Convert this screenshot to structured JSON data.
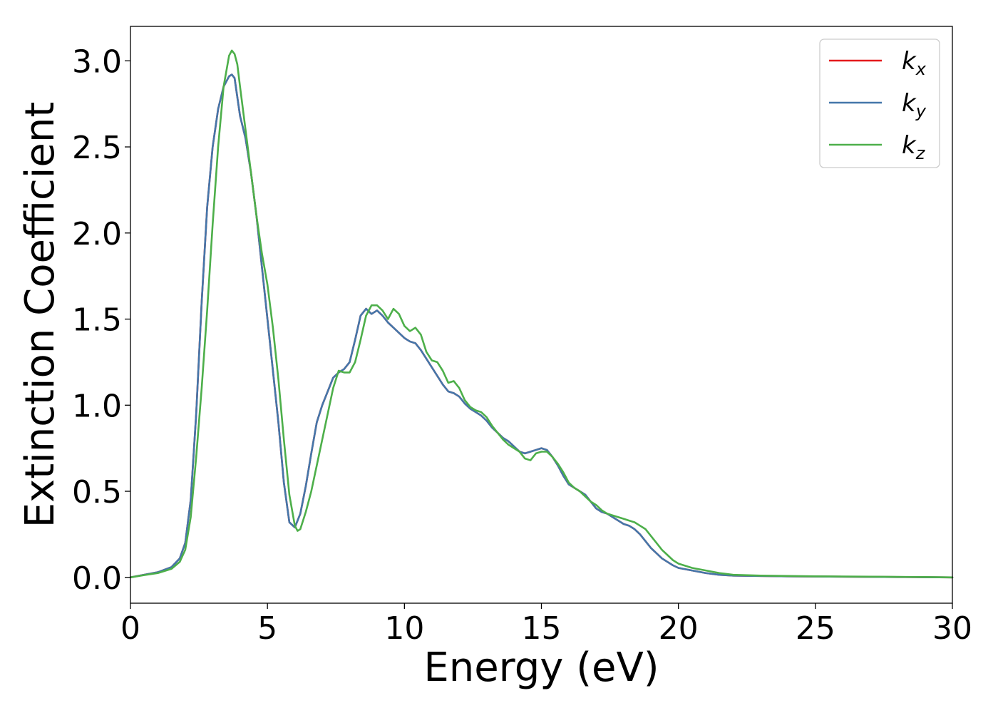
{
  "chart_data": {
    "type": "line",
    "title": "",
    "xlabel": "Energy (eV)",
    "ylabel": "Extinction Coefficient",
    "xlim": [
      0,
      30
    ],
    "ylim": [
      -0.15,
      3.2
    ],
    "xticks": [
      0,
      5,
      10,
      15,
      20,
      25,
      30
    ],
    "xtick_labels": [
      "0",
      "5",
      "10",
      "15",
      "20",
      "25",
      "30"
    ],
    "yticks": [
      0.0,
      0.5,
      1.0,
      1.5,
      2.0,
      2.5,
      3.0
    ],
    "ytick_labels": [
      "0.0",
      "0.5",
      "1.0",
      "1.5",
      "2.0",
      "2.5",
      "3.0"
    ],
    "grid": false,
    "legend_position": "top-right",
    "series": [
      {
        "name": "k",
        "subscript": "x",
        "color": "#e41a1c",
        "x": [
          0,
          0.5,
          1.0,
          1.5,
          1.8,
          2.0,
          2.2,
          2.4,
          2.6,
          2.8,
          3.0,
          3.2,
          3.4,
          3.6,
          3.7,
          3.8,
          4.0,
          4.2,
          4.4,
          4.6,
          4.8,
          5.0,
          5.2,
          5.4,
          5.6,
          5.8,
          6.0,
          6.2,
          6.4,
          6.6,
          6.8,
          7.0,
          7.2,
          7.4,
          7.6,
          7.8,
          8.0,
          8.2,
          8.4,
          8.6,
          8.8,
          9.0,
          9.2,
          9.4,
          9.6,
          9.8,
          10.0,
          10.2,
          10.4,
          10.6,
          10.8,
          11.0,
          11.2,
          11.4,
          11.6,
          11.8,
          12.0,
          12.2,
          12.4,
          12.6,
          12.8,
          13.0,
          13.2,
          13.4,
          13.6,
          13.8,
          14.0,
          14.2,
          14.4,
          14.6,
          14.8,
          15.0,
          15.2,
          15.4,
          15.6,
          15.8,
          16.0,
          16.2,
          16.4,
          16.6,
          16.8,
          17.0,
          17.2,
          17.4,
          17.6,
          17.8,
          18.0,
          18.2,
          18.4,
          18.6,
          18.8,
          19.0,
          19.2,
          19.4,
          19.6,
          19.8,
          20.0,
          20.5,
          21.0,
          21.5,
          22.0,
          23.0,
          24.0,
          25.0,
          26.0,
          27.0,
          28.0,
          29.0,
          30.0
        ],
        "y": [
          0,
          0.015,
          0.03,
          0.06,
          0.11,
          0.2,
          0.45,
          0.95,
          1.6,
          2.15,
          2.5,
          2.72,
          2.85,
          2.91,
          2.92,
          2.9,
          2.68,
          2.55,
          2.35,
          2.1,
          1.8,
          1.5,
          1.2,
          0.9,
          0.55,
          0.32,
          0.29,
          0.37,
          0.53,
          0.72,
          0.9,
          1.0,
          1.08,
          1.16,
          1.19,
          1.21,
          1.25,
          1.38,
          1.52,
          1.56,
          1.53,
          1.55,
          1.52,
          1.48,
          1.45,
          1.42,
          1.39,
          1.37,
          1.36,
          1.32,
          1.27,
          1.22,
          1.17,
          1.12,
          1.08,
          1.07,
          1.05,
          1.01,
          0.98,
          0.96,
          0.94,
          0.91,
          0.87,
          0.84,
          0.81,
          0.79,
          0.76,
          0.73,
          0.72,
          0.73,
          0.74,
          0.75,
          0.74,
          0.7,
          0.65,
          0.59,
          0.54,
          0.52,
          0.5,
          0.48,
          0.44,
          0.4,
          0.38,
          0.37,
          0.35,
          0.33,
          0.31,
          0.3,
          0.28,
          0.25,
          0.21,
          0.17,
          0.14,
          0.11,
          0.09,
          0.07,
          0.055,
          0.04,
          0.025,
          0.015,
          0.01,
          0.008,
          0.006,
          0.005,
          0.004,
          0.003,
          0.002,
          0.001,
          0.0
        ]
      },
      {
        "name": "k",
        "subscript": "y",
        "color": "#4477aa",
        "x": [
          0,
          0.5,
          1.0,
          1.5,
          1.8,
          2.0,
          2.2,
          2.4,
          2.6,
          2.8,
          3.0,
          3.2,
          3.4,
          3.6,
          3.7,
          3.8,
          4.0,
          4.2,
          4.4,
          4.6,
          4.8,
          5.0,
          5.2,
          5.4,
          5.6,
          5.8,
          6.0,
          6.2,
          6.4,
          6.6,
          6.8,
          7.0,
          7.2,
          7.4,
          7.6,
          7.8,
          8.0,
          8.2,
          8.4,
          8.6,
          8.8,
          9.0,
          9.2,
          9.4,
          9.6,
          9.8,
          10.0,
          10.2,
          10.4,
          10.6,
          10.8,
          11.0,
          11.2,
          11.4,
          11.6,
          11.8,
          12.0,
          12.2,
          12.4,
          12.6,
          12.8,
          13.0,
          13.2,
          13.4,
          13.6,
          13.8,
          14.0,
          14.2,
          14.4,
          14.6,
          14.8,
          15.0,
          15.2,
          15.4,
          15.6,
          15.8,
          16.0,
          16.2,
          16.4,
          16.6,
          16.8,
          17.0,
          17.2,
          17.4,
          17.6,
          17.8,
          18.0,
          18.2,
          18.4,
          18.6,
          18.8,
          19.0,
          19.2,
          19.4,
          19.6,
          19.8,
          20.0,
          20.5,
          21.0,
          21.5,
          22.0,
          23.0,
          24.0,
          25.0,
          26.0,
          27.0,
          28.0,
          29.0,
          30.0
        ],
        "y": [
          0,
          0.015,
          0.03,
          0.06,
          0.11,
          0.2,
          0.45,
          0.95,
          1.6,
          2.15,
          2.5,
          2.72,
          2.85,
          2.91,
          2.92,
          2.9,
          2.68,
          2.55,
          2.35,
          2.1,
          1.8,
          1.5,
          1.2,
          0.9,
          0.55,
          0.32,
          0.29,
          0.37,
          0.53,
          0.72,
          0.9,
          1.0,
          1.08,
          1.16,
          1.19,
          1.21,
          1.25,
          1.38,
          1.52,
          1.56,
          1.53,
          1.55,
          1.52,
          1.48,
          1.45,
          1.42,
          1.39,
          1.37,
          1.36,
          1.32,
          1.27,
          1.22,
          1.17,
          1.12,
          1.08,
          1.07,
          1.05,
          1.01,
          0.98,
          0.96,
          0.94,
          0.91,
          0.87,
          0.84,
          0.81,
          0.79,
          0.76,
          0.73,
          0.72,
          0.73,
          0.74,
          0.75,
          0.74,
          0.7,
          0.65,
          0.59,
          0.54,
          0.52,
          0.5,
          0.48,
          0.44,
          0.4,
          0.38,
          0.37,
          0.35,
          0.33,
          0.31,
          0.3,
          0.28,
          0.25,
          0.21,
          0.17,
          0.14,
          0.11,
          0.09,
          0.07,
          0.055,
          0.04,
          0.025,
          0.015,
          0.01,
          0.008,
          0.006,
          0.005,
          0.004,
          0.003,
          0.002,
          0.001,
          0.0
        ]
      },
      {
        "name": "k",
        "subscript": "z",
        "color": "#4daf4a",
        "x": [
          0,
          0.5,
          1.0,
          1.5,
          1.8,
          2.0,
          2.2,
          2.4,
          2.6,
          2.8,
          3.0,
          3.2,
          3.4,
          3.6,
          3.7,
          3.8,
          3.9,
          4.0,
          4.2,
          4.4,
          4.6,
          4.8,
          5.0,
          5.2,
          5.4,
          5.6,
          5.8,
          6.0,
          6.1,
          6.2,
          6.4,
          6.6,
          6.8,
          7.0,
          7.2,
          7.4,
          7.6,
          7.8,
          8.0,
          8.2,
          8.4,
          8.6,
          8.8,
          9.0,
          9.2,
          9.4,
          9.6,
          9.8,
          10.0,
          10.2,
          10.4,
          10.6,
          10.8,
          11.0,
          11.2,
          11.4,
          11.6,
          11.8,
          12.0,
          12.2,
          12.4,
          12.6,
          12.8,
          13.0,
          13.2,
          13.4,
          13.6,
          13.8,
          14.0,
          14.2,
          14.4,
          14.6,
          14.8,
          15.0,
          15.2,
          15.4,
          15.6,
          15.8,
          16.0,
          16.2,
          16.4,
          16.6,
          16.8,
          17.0,
          17.2,
          17.4,
          17.6,
          17.8,
          18.0,
          18.2,
          18.4,
          18.6,
          18.8,
          19.0,
          19.2,
          19.4,
          19.6,
          19.8,
          20.0,
          20.5,
          21.0,
          21.5,
          22.0,
          23.0,
          24.0,
          25.0,
          26.0,
          27.0,
          28.0,
          29.0,
          30.0
        ],
        "y": [
          0,
          0.013,
          0.025,
          0.05,
          0.09,
          0.16,
          0.35,
          0.7,
          1.1,
          1.55,
          2.05,
          2.5,
          2.85,
          3.03,
          3.06,
          3.04,
          2.98,
          2.85,
          2.6,
          2.35,
          2.1,
          1.88,
          1.7,
          1.45,
          1.15,
          0.8,
          0.48,
          0.3,
          0.27,
          0.28,
          0.38,
          0.5,
          0.65,
          0.8,
          0.95,
          1.1,
          1.2,
          1.19,
          1.19,
          1.25,
          1.38,
          1.52,
          1.58,
          1.58,
          1.55,
          1.5,
          1.56,
          1.53,
          1.46,
          1.43,
          1.45,
          1.41,
          1.31,
          1.26,
          1.25,
          1.2,
          1.13,
          1.14,
          1.1,
          1.03,
          0.99,
          0.97,
          0.96,
          0.93,
          0.88,
          0.84,
          0.8,
          0.77,
          0.75,
          0.73,
          0.69,
          0.68,
          0.72,
          0.73,
          0.73,
          0.7,
          0.66,
          0.61,
          0.55,
          0.52,
          0.5,
          0.47,
          0.44,
          0.42,
          0.39,
          0.37,
          0.36,
          0.35,
          0.34,
          0.33,
          0.32,
          0.3,
          0.28,
          0.24,
          0.2,
          0.16,
          0.13,
          0.1,
          0.08,
          0.055,
          0.04,
          0.025,
          0.015,
          0.01,
          0.008,
          0.006,
          0.005,
          0.004,
          0.003,
          0.002,
          0.0
        ]
      }
    ]
  }
}
